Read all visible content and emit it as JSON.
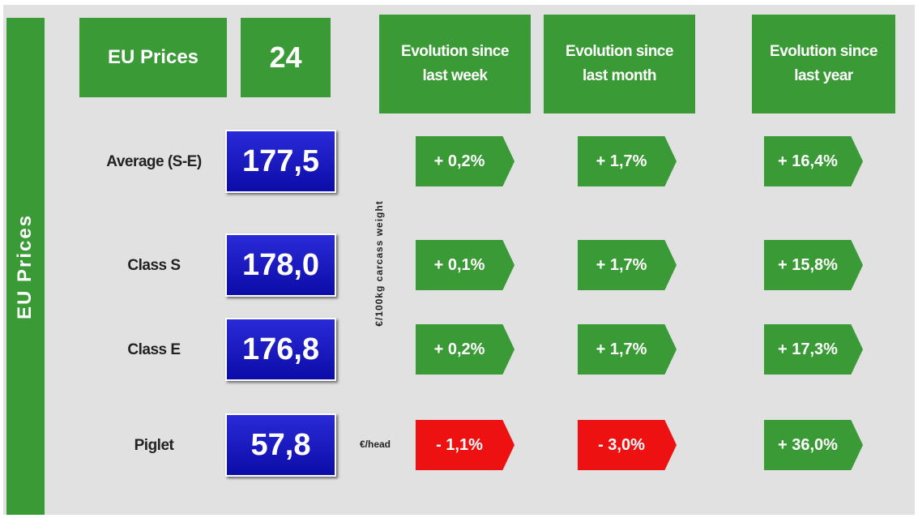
{
  "sidebar": "EU Prices",
  "header": {
    "title": "EU Prices",
    "week": "24",
    "columns": [
      "Evolution since last week",
      "Evolution since last month",
      "Evolution since last year"
    ]
  },
  "units": {
    "carcass": "€/100kg carcass weight",
    "head": "€/head"
  },
  "rows": [
    {
      "label": "Average (S-E)",
      "price": "177,5",
      "changes": [
        "+ 0,2%",
        "+ 1,7%",
        "+ 16,4%"
      ]
    },
    {
      "label": "Class S",
      "price": "178,0",
      "changes": [
        "+ 0,1%",
        "+ 1,7%",
        "+ 15,8%"
      ]
    },
    {
      "label": "Class E",
      "price": "176,8",
      "changes": [
        "+ 0,2%",
        "+ 1,7%",
        "+ 17,3%"
      ]
    },
    {
      "label": "Piglet",
      "price": "57,8",
      "changes": [
        "- 1,1%",
        "- 3,0%",
        "+ 36,0%"
      ]
    }
  ]
}
